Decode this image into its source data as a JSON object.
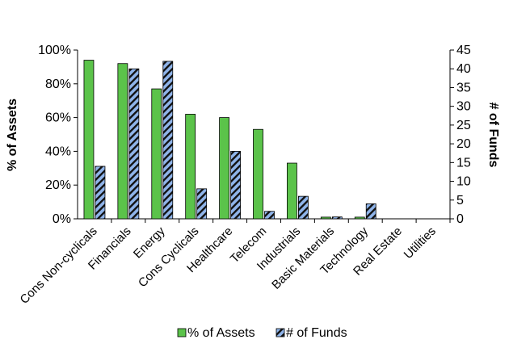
{
  "chart_data": {
    "type": "bar",
    "categories": [
      "Cons Non-cyclicals",
      "Financials",
      "Energy",
      "Cons Cyclicals",
      "Healthcare",
      "Telecom",
      "Industrials",
      "Basic Materials",
      "Technology",
      "Real Estate",
      "Utilities"
    ],
    "series": [
      {
        "name": "% of Assets",
        "axis": "left",
        "color": "#5bc34a",
        "values": [
          94,
          92,
          77,
          62,
          60,
          53,
          33,
          1,
          1,
          0,
          0
        ]
      },
      {
        "name": "# of Funds",
        "axis": "right",
        "color": "#7a9fd6",
        "pattern": "diagonal-stripes",
        "values": [
          14,
          40,
          42,
          8,
          18,
          2,
          6,
          0.5,
          4,
          0,
          0
        ]
      }
    ],
    "ylabel": "% of Assets",
    "y2label": "# of Funds",
    "ylim": [
      0,
      100
    ],
    "y2lim": [
      0,
      45
    ],
    "yticks": [
      "0%",
      "20%",
      "40%",
      "60%",
      "80%",
      "100%"
    ],
    "y2ticks": [
      "0",
      "5",
      "10",
      "15",
      "20",
      "25",
      "30",
      "35",
      "40",
      "45"
    ],
    "legend_position": "bottom",
    "grid": false
  }
}
